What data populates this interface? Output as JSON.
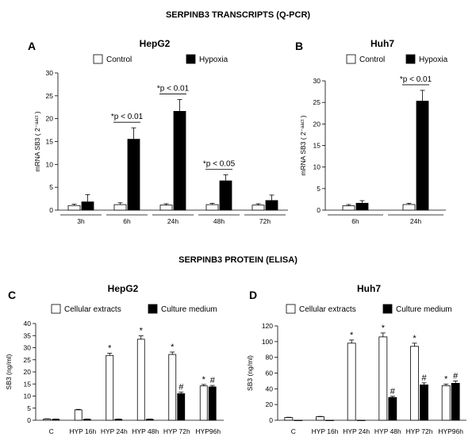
{
  "headings": {
    "transcripts": "SERPINB3 TRANSCRIPTS (Q-PCR)",
    "protein": "SERPINB3 PROTEIN (ELISA)"
  },
  "colors": {
    "series_a": "#ffffff",
    "series_b": "#000000"
  },
  "chart_data": [
    {
      "id": "A",
      "letter": "A",
      "type": "bar",
      "title": "HepG2",
      "ylabel": "mRNA SB3 ( 2⁻ᵃᵃᶜᵗ )",
      "ylim": [
        0,
        30
      ],
      "yticks": [
        0,
        5,
        10,
        15,
        20,
        25,
        30
      ],
      "categories": [
        "3h",
        "6h",
        "24h",
        "48h",
        "72h"
      ],
      "series": [
        {
          "name": "Control",
          "values": [
            1.0,
            1.2,
            1.1,
            1.2,
            1.1
          ],
          "errors": [
            0.3,
            0.4,
            0.3,
            0.3,
            0.3
          ]
        },
        {
          "name": "Hypoxia",
          "values": [
            1.8,
            15.5,
            21.6,
            6.4,
            2.1
          ],
          "errors": [
            1.6,
            2.5,
            2.6,
            1.3,
            1.2
          ]
        }
      ],
      "annotations": [
        {
          "category": "6h",
          "text": "*p < 0.01"
        },
        {
          "category": "24h",
          "text": "*p < 0.01"
        },
        {
          "category": "48h",
          "text": "*p < 0.05"
        }
      ],
      "legend": "top"
    },
    {
      "id": "B",
      "letter": "B",
      "type": "bar",
      "title": "Huh7",
      "ylabel": "mRNA SB3 ( 2⁻ᵃᵃᶜᵗ )",
      "ylim": [
        0,
        30
      ],
      "yticks": [
        0,
        5,
        10,
        15,
        20,
        25,
        30
      ],
      "categories": [
        "6h",
        "24h"
      ],
      "series": [
        {
          "name": "Control",
          "values": [
            1.0,
            1.3
          ],
          "errors": [
            0.3,
            0.3
          ]
        },
        {
          "name": "Hypoxia",
          "values": [
            1.6,
            25.3
          ],
          "errors": [
            0.6,
            2.5
          ]
        }
      ],
      "annotations": [
        {
          "category": "24h",
          "text": "*p < 0.01"
        }
      ],
      "legend": "top"
    },
    {
      "id": "C",
      "letter": "C",
      "type": "bar",
      "title": "HepG2",
      "ylabel": "SB3 (ng/ml)",
      "ylim": [
        0,
        40
      ],
      "yticks": [
        0,
        5,
        10,
        15,
        20,
        25,
        30,
        35,
        40
      ],
      "categories": [
        "C",
        "HYP 16h",
        "HYP 24h",
        "HYP 48h",
        "HYP 72h",
        "HYP96h"
      ],
      "series": [
        {
          "name": "Cellular extracts",
          "values": [
            0.5,
            4.3,
            26.8,
            33.5,
            27.2,
            14.2
          ],
          "errors": [
            0.1,
            0.2,
            0.9,
            1.4,
            1.0,
            0.6
          ],
          "marks": [
            "",
            "",
            "*",
            "*",
            "*",
            "*"
          ]
        },
        {
          "name": "Culture medium",
          "values": [
            0.4,
            0.4,
            0.4,
            0.4,
            11.0,
            13.8
          ],
          "errors": [
            0.1,
            0.1,
            0.1,
            0.1,
            0.6,
            0.6
          ],
          "marks": [
            "",
            "",
            "",
            "",
            "#",
            "#"
          ]
        }
      ],
      "legend": "top"
    },
    {
      "id": "D",
      "letter": "D",
      "type": "bar",
      "title": "Huh7",
      "ylabel": "SB3 (ng/ml)",
      "ylim": [
        0,
        120
      ],
      "yticks": [
        0,
        20,
        40,
        60,
        80,
        100,
        120
      ],
      "categories": [
        "C",
        "HYP 16h",
        "HYP 24h",
        "HYP 48h",
        "HYP 72h",
        "HYP96h"
      ],
      "series": [
        {
          "name": "Cellular extracts",
          "values": [
            3.5,
            4.5,
            98,
            106,
            94,
            44
          ],
          "errors": [
            0.3,
            0.4,
            4,
            5,
            4,
            2
          ],
          "marks": [
            "",
            "",
            "*",
            "*",
            "*",
            "*"
          ]
        },
        {
          "name": "Culture medium",
          "values": [
            0,
            0,
            0,
            29,
            45,
            47
          ],
          "errors": [
            0,
            0,
            0,
            1.5,
            2.5,
            3
          ],
          "marks": [
            "",
            "",
            "",
            "#",
            "#",
            "#"
          ]
        }
      ],
      "legend": "top"
    }
  ]
}
